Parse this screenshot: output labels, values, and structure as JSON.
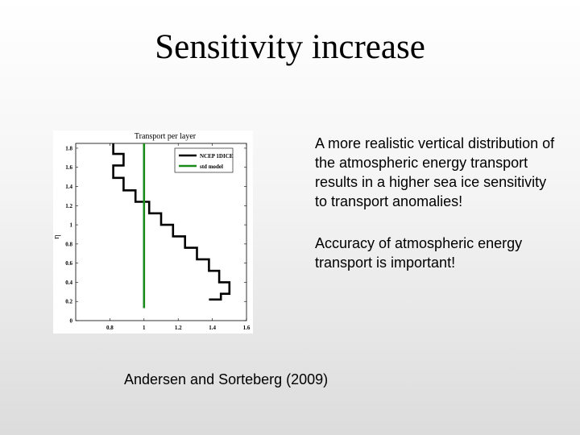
{
  "slide": {
    "title": "Sensitivity increase",
    "bullets": [
      "A more realistic vertical distribution of the atmospheric energy transport results in a higher sea ice sensitivity to transport anomalies!",
      "Accuracy of atmospheric energy transport is important!"
    ],
    "citation": "Andersen and Sorteberg (2009)"
  },
  "chart_data": {
    "type": "line",
    "title": "Transport per layer",
    "xlabel": "",
    "ylabel": "η",
    "xlim": [
      0.6,
      1.6
    ],
    "ylim": [
      0,
      1.85
    ],
    "x_ticks": [
      "0.8",
      "1",
      "1.2",
      "1.4",
      "1.6"
    ],
    "y_ticks": [
      "0",
      "0.2",
      "0.4",
      "0.6",
      "0.8",
      "1",
      "1.2",
      "1.4",
      "1.6",
      "1.8"
    ],
    "legend": {
      "location": "top-right",
      "entries": [
        "NCEP 1DICE",
        "std model"
      ]
    },
    "series": [
      {
        "name": "NCEP 1DICE",
        "color": "#000000",
        "style": "step",
        "x": [
          0.82,
          0.82,
          0.88,
          0.88,
          0.82,
          0.82,
          0.88,
          0.88,
          0.95,
          0.95,
          1.03,
          1.03,
          1.1,
          1.1,
          1.17,
          1.17,
          1.24,
          1.24,
          1.31,
          1.31,
          1.38,
          1.38,
          1.44,
          1.44,
          1.5,
          1.5,
          1.45,
          1.45,
          1.38
        ],
        "y": [
          1.85,
          1.74,
          1.74,
          1.62,
          1.62,
          1.49,
          1.49,
          1.36,
          1.36,
          1.24,
          1.24,
          1.12,
          1.12,
          1.0,
          1.0,
          0.88,
          0.88,
          0.76,
          0.76,
          0.64,
          0.64,
          0.52,
          0.52,
          0.4,
          0.4,
          0.28,
          0.28,
          0.22,
          0.22
        ]
      },
      {
        "name": "std model",
        "color": "#1a8a1a",
        "style": "line",
        "x": [
          1.0,
          1.0
        ],
        "y": [
          0.13,
          1.85
        ]
      }
    ]
  }
}
